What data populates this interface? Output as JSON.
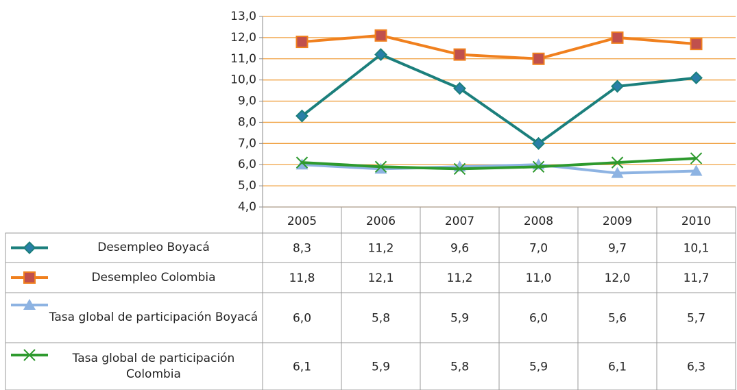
{
  "chart_data": {
    "type": "line",
    "categories": [
      "2005",
      "2006",
      "2007",
      "2008",
      "2009",
      "2010"
    ],
    "series": [
      {
        "name": "Desempleo Boyacá",
        "color": "#1b7f7c",
        "marker": "diamond",
        "marker_color": "#2a7fa8",
        "values": [
          8.3,
          11.2,
          9.6,
          7.0,
          9.7,
          10.1
        ],
        "value_labels": [
          "8,3",
          "11,2",
          "9,6",
          "7,0",
          "9,7",
          "10,1"
        ]
      },
      {
        "name": "Desempleo Colombia",
        "color": "#f0801e",
        "marker": "square",
        "marker_color": "#c0504d",
        "values": [
          11.8,
          12.1,
          11.2,
          11.0,
          12.0,
          11.7
        ],
        "value_labels": [
          "11,8",
          "12,1",
          "11,2",
          "11,0",
          "12,0",
          "11,7"
        ]
      },
      {
        "name": "Tasa global de participación Boyacá",
        "color": "#8db3e2",
        "marker": "triangle",
        "marker_color": "#8db3e2",
        "values": [
          6.0,
          5.8,
          5.9,
          6.0,
          5.6,
          5.7
        ],
        "value_labels": [
          "6,0",
          "5,8",
          "5,9",
          "6,0",
          "5,6",
          "5,7"
        ]
      },
      {
        "name": "Tasa global de participación Colombia",
        "color": "#2e9a2e",
        "marker": "x",
        "marker_color": "#2e9a2e",
        "values": [
          6.1,
          5.9,
          5.8,
          5.9,
          6.1,
          6.3
        ],
        "value_labels": [
          "6,1",
          "5,9",
          "5,8",
          "5,9",
          "6,1",
          "6,3"
        ]
      }
    ],
    "ylim": [
      4,
      13
    ],
    "yticks": [
      {
        "value": 4,
        "label": "4,0"
      },
      {
        "value": 5,
        "label": "5,0"
      },
      {
        "value": 6,
        "label": "6,0"
      },
      {
        "value": 7,
        "label": "7,0"
      },
      {
        "value": 8,
        "label": "8,0"
      },
      {
        "value": 9,
        "label": "9,0"
      },
      {
        "value": 10,
        "label": "10,0"
      },
      {
        "value": 11,
        "label": "11,0"
      },
      {
        "value": 12,
        "label": "12,0"
      },
      {
        "value": 13,
        "label": "13,0"
      }
    ],
    "grid": true,
    "grid_color": "#f0a040",
    "data_table": true
  }
}
